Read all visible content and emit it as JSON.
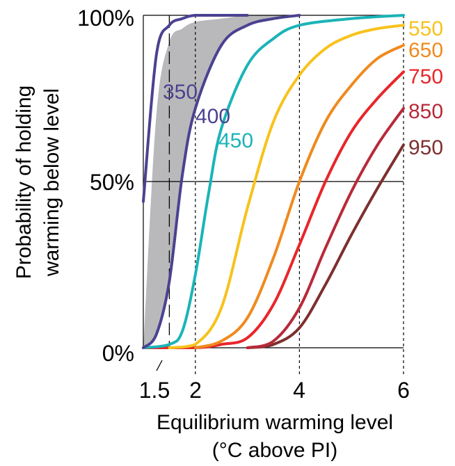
{
  "chart_data": {
    "type": "line",
    "xlabel": "Equilibrium warming level",
    "xlabel_line2": "(°C above PI)",
    "ylabel_line1": "Probability of holding",
    "ylabel_line2": "warming below level",
    "x_ticks": [
      "1.5",
      "2",
      "4",
      "6"
    ],
    "y_ticks": [
      "0%",
      "50%",
      "100%"
    ],
    "xlim": [
      1.0,
      6.0
    ],
    "ylim": [
      0,
      100
    ],
    "grid": "dashed vertical lines at 1.5, 2, 4, 6; solid horizontal line at 50%",
    "legend": "inline labels at right edge and along curves",
    "series": [
      {
        "name": "350",
        "color": "#4a4290",
        "label_side": "inside",
        "x": [
          1.0,
          1.25,
          1.5,
          1.75,
          2.0,
          2.5,
          3.0
        ],
        "y": [
          44,
          88,
          97,
          99,
          100,
          100,
          100
        ]
      },
      {
        "name": "400",
        "color": "#4a4290",
        "label_side": "inside",
        "x": [
          1.0,
          1.25,
          1.5,
          1.75,
          2.0,
          2.5,
          3.0,
          3.5,
          4.0
        ],
        "y": [
          0,
          4,
          20,
          52,
          72,
          91,
          97,
          99,
          100
        ]
      },
      {
        "name": "450",
        "color": "#1ab4b8",
        "label_side": "inside",
        "x": [
          1.0,
          1.5,
          1.75,
          2.0,
          2.25,
          2.5,
          3.0,
          3.5,
          4.0,
          5.0,
          6.0
        ],
        "y": [
          0,
          1,
          5,
          22,
          46,
          66,
          85,
          93,
          97,
          99,
          100
        ]
      },
      {
        "name": "550",
        "color": "#f7c21c",
        "label_side": "right",
        "x": [
          1.5,
          2.0,
          2.5,
          3.0,
          3.5,
          4.0,
          4.5,
          5.0,
          5.5,
          6.0
        ],
        "y": [
          0,
          1,
          12,
          42,
          68,
          82,
          90,
          94,
          96,
          97
        ]
      },
      {
        "name": "650",
        "color": "#ef8a1e",
        "label_side": "right",
        "x": [
          2.0,
          2.5,
          3.0,
          3.5,
          4.0,
          4.5,
          5.0,
          5.5,
          6.0
        ],
        "y": [
          0,
          2,
          9,
          27,
          50,
          68,
          79,
          87,
          91
        ]
      },
      {
        "name": "750",
        "color": "#e8262a",
        "label_side": "right",
        "x": [
          1.0,
          2.0,
          2.5,
          3.0,
          3.5,
          4.0,
          4.5,
          5.0,
          5.5,
          6.0
        ],
        "y": [
          0,
          0,
          1,
          3,
          13,
          31,
          50,
          65,
          75,
          83
        ]
      },
      {
        "name": "850",
        "color": "#b82a3a",
        "label_side": "right",
        "x": [
          3.0,
          3.5,
          4.0,
          4.5,
          5.0,
          5.5,
          6.0
        ],
        "y": [
          0,
          2,
          12,
          30,
          47,
          61,
          72
        ]
      },
      {
        "name": "950",
        "color": "#7e2f2f",
        "label_side": "right",
        "x": [
          3.0,
          3.5,
          4.0,
          4.5,
          5.0,
          5.5,
          6.0
        ],
        "y": [
          0,
          1,
          6,
          19,
          34,
          48,
          61
        ]
      }
    ],
    "shaded_band": {
      "color": "#b9b9bb",
      "x": [
        1.0,
        1.25,
        1.5,
        1.75,
        2.0,
        2.5,
        3.0,
        3.5,
        4.0
      ],
      "y_upper": [
        0,
        70,
        92,
        96,
        98,
        99,
        100,
        100,
        100
      ],
      "y_lower": [
        0,
        4,
        20,
        52,
        72,
        91,
        97,
        99,
        100
      ]
    }
  }
}
